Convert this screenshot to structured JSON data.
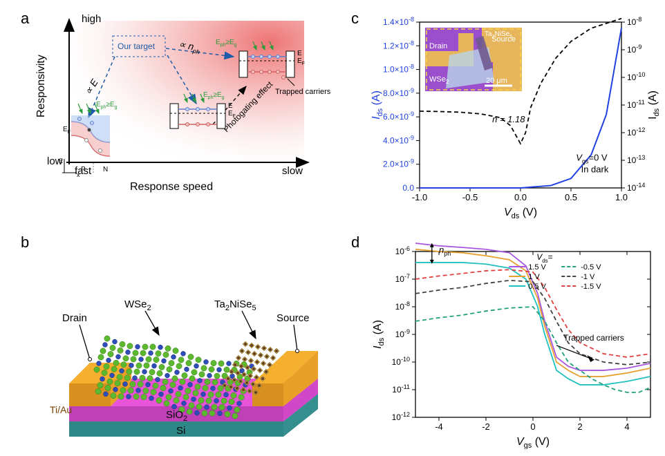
{
  "panel_a": {
    "label": "a",
    "y_axis": "Responsivity",
    "x_axis": "Response speed",
    "y_high": "high",
    "y_low": "low",
    "x_fast": "fast",
    "x_slow": "slow",
    "target_box": "Our target",
    "prop_E": "∝ E",
    "prop_nph": "∝ n",
    "prop_nph_sub": "ph",
    "photogating": "Photogating effect",
    "trapped": "Trapped carriers",
    "Eph_label": "E",
    "Eph_sub": "ph",
    "Eg_label": "≥E",
    "Eg_sub": "g",
    "E_label": "E",
    "EF_label": "E",
    "EF_sub": "F",
    "P_label": "P",
    "N_label": "N",
    "x_small": "x",
    "gradient_color_start": "#fde5e5",
    "gradient_color_end": "#e84545",
    "arrow_color": "#1e5ba8",
    "green_color": "#2b9c3a"
  },
  "panel_b": {
    "label": "b",
    "drain": "Drain",
    "source": "Source",
    "wse2": "WSe",
    "wse2_sub": "2",
    "ta2nise5": "Ta",
    "ta2_sub": "2",
    "nise": "NiSe",
    "nise_sub": "5",
    "tiau": "Ti/Au",
    "sio2": "SiO",
    "sio2_sub": "2",
    "si": "Si",
    "colors": {
      "electrode": "#f5a623",
      "sio2": "#e855d8",
      "si": "#4db8b8",
      "wse2_green": "#5cb82e",
      "wse2_blue": "#2e4db8"
    }
  },
  "panel_c": {
    "label": "c",
    "x_axis": "V",
    "x_axis_sub": "ds",
    "x_axis_unit": " (V)",
    "y_axis_left": "I",
    "y_axis_left_sub": "ds",
    "y_axis_left_unit": " (A)",
    "y_axis_right": "I",
    "y_axis_right_sub": "ds",
    "y_axis_right_unit": " (A)",
    "n_label": "n = 1.18",
    "vgs_label": "V",
    "vgs_sub": "gs",
    "vgs_text": "=0 V",
    "dark_label": "In dark",
    "inset_drain": "Drain",
    "inset_source": "Source",
    "inset_wse2": "WSe",
    "inset_wse2_sub": "2",
    "inset_ta": "Ta",
    "inset_ta_sub": "2",
    "inset_nise": "NiSe",
    "inset_nise_sub": "5",
    "scale_bar": "20 μm",
    "x_ticks": [
      "-1.0",
      "-0.5",
      "0.0",
      "0.5",
      "1.0"
    ],
    "y_left_ticks": [
      "0.0",
      "2.0×10",
      "4.0×10",
      "6.0×10",
      "8.0×10",
      "1.0×10",
      "1.2×10",
      "1.4×10"
    ],
    "y_left_exp": [
      "-9",
      "-9",
      "-9",
      "-9",
      "-8",
      "-8",
      "-8"
    ],
    "y_right_ticks": [
      "10",
      "10",
      "10",
      "10",
      "10",
      "10",
      "10"
    ],
    "y_right_exp": [
      "-14",
      "-13",
      "-12",
      "-11",
      "-10",
      "-9",
      "-8"
    ],
    "blue_color": "#2040e0",
    "inset_bg": "#9b4fcc",
    "inset_electrode": "#f5c848",
    "inset_flake": "#b8d4e8",
    "linear_data": [
      [
        -1.0,
        0.0
      ],
      [
        -0.5,
        0.0
      ],
      [
        0.0,
        0.0
      ],
      [
        0.3,
        2e-10
      ],
      [
        0.5,
        8e-10
      ],
      [
        0.7,
        2.8e-09
      ],
      [
        0.85,
        6.2e-09
      ],
      [
        1.0,
        1.35e-08
      ]
    ],
    "log_data": [
      [
        -1.0,
        6e-12
      ],
      [
        -0.8,
        5.8e-12
      ],
      [
        -0.6,
        5.5e-12
      ],
      [
        -0.4,
        4.8e-12
      ],
      [
        -0.2,
        3.5e-12
      ],
      [
        -0.1,
        1.8e-12
      ],
      [
        0.0,
        4e-13
      ],
      [
        0.05,
        1e-12
      ],
      [
        0.1,
        8e-12
      ],
      [
        0.2,
        6e-11
      ],
      [
        0.35,
        5e-10
      ],
      [
        0.5,
        2e-09
      ],
      [
        0.7,
        6e-09
      ],
      [
        1.0,
        1.35e-08
      ]
    ]
  },
  "panel_d": {
    "label": "d",
    "x_axis": "V",
    "x_axis_sub": "gs",
    "x_axis_unit": " (V)",
    "y_axis": "I",
    "y_axis_sub": "ds",
    "y_axis_unit": " (A)",
    "nph_label": "n",
    "nph_sub": "ph",
    "trapped": "Trapped carriers",
    "vds_label": "V",
    "vds_sub": "ds",
    "vds_eq": "=",
    "legend": [
      "1.5 V",
      "1 V",
      "0.5 V",
      "-0.5 V",
      "-1 V",
      "-1.5 V"
    ],
    "legend_colors": [
      "#a855e0",
      "#e8a030",
      "#20c0c0",
      "#20a080",
      "#404040",
      "#e04040"
    ],
    "legend_dash": [
      false,
      false,
      false,
      true,
      true,
      true
    ],
    "x_ticks": [
      "-4",
      "-2",
      "0",
      "2",
      "4"
    ],
    "y_ticks": [
      "10",
      "10",
      "10",
      "10",
      "10",
      "10",
      "10"
    ],
    "y_exp": [
      "-12",
      "-11",
      "-10",
      "-9",
      "-8",
      "-7",
      "-6"
    ],
    "series": {
      "1.5V": [
        [
          -5,
          2e-06
        ],
        [
          -4,
          1.6e-06
        ],
        [
          -3,
          1.4e-06
        ],
        [
          -2,
          1.2e-06
        ],
        [
          -1,
          9e-07
        ],
        [
          -0.3,
          3e-07
        ],
        [
          0.2,
          3e-08
        ],
        [
          0.5,
          3e-09
        ],
        [
          1,
          1.5e-10
        ],
        [
          1.5,
          7e-11
        ],
        [
          2,
          5e-11
        ],
        [
          3,
          5e-11
        ],
        [
          4,
          6e-11
        ],
        [
          5,
          9e-11
        ]
      ],
      "1V": [
        [
          -5,
          1.2e-06
        ],
        [
          -4,
          1e-06
        ],
        [
          -3,
          9e-07
        ],
        [
          -2,
          7e-07
        ],
        [
          -1,
          5e-07
        ],
        [
          -0.3,
          2e-07
        ],
        [
          0.2,
          2e-08
        ],
        [
          0.5,
          2e-09
        ],
        [
          1,
          1e-10
        ],
        [
          1.5,
          5e-11
        ],
        [
          2,
          3e-11
        ],
        [
          3,
          3e-11
        ],
        [
          4,
          4e-11
        ],
        [
          5,
          6e-11
        ]
      ],
      "0.5V": [
        [
          -5,
          4e-07
        ],
        [
          -4,
          4e-07
        ],
        [
          -3,
          4e-07
        ],
        [
          -2,
          3.5e-07
        ],
        [
          -1,
          2.5e-07
        ],
        [
          -0.3,
          1e-07
        ],
        [
          0.2,
          1e-08
        ],
        [
          0.5,
          1e-09
        ],
        [
          1,
          5e-11
        ],
        [
          1.5,
          2.5e-11
        ],
        [
          2,
          1.5e-11
        ],
        [
          3,
          1.5e-11
        ],
        [
          4,
          2e-11
        ],
        [
          5,
          3e-11
        ]
      ],
      "-0.5V": [
        [
          -5,
          3e-09
        ],
        [
          -4,
          4e-09
        ],
        [
          -3,
          5e-09
        ],
        [
          -2,
          7e-09
        ],
        [
          -1,
          9e-09
        ],
        [
          0,
          1e-08
        ],
        [
          0.5,
          3e-09
        ],
        [
          1,
          5e-10
        ],
        [
          1.5,
          1e-10
        ],
        [
          2,
          5e-11
        ],
        [
          2.5,
          2.5e-11
        ],
        [
          3,
          1.5e-11
        ],
        [
          3.5,
          1e-11
        ],
        [
          4,
          8e-12
        ],
        [
          4.5,
          8e-12
        ],
        [
          5,
          1.2e-11
        ]
      ],
      "-1V": [
        [
          -5,
          3e-08
        ],
        [
          -4,
          4e-08
        ],
        [
          -3,
          5e-08
        ],
        [
          -2,
          7e-08
        ],
        [
          -1,
          9e-08
        ],
        [
          0,
          8e-08
        ],
        [
          0.5,
          2e-08
        ],
        [
          1,
          3e-09
        ],
        [
          1.5,
          5e-10
        ],
        [
          2,
          2e-10
        ],
        [
          3,
          1e-10
        ],
        [
          4,
          8e-11
        ],
        [
          5,
          1e-10
        ]
      ],
      "-1.5V": [
        [
          -5,
          1e-07
        ],
        [
          -4,
          1.3e-07
        ],
        [
          -3,
          1.6e-07
        ],
        [
          -2,
          2e-07
        ],
        [
          -1,
          2.2e-07
        ],
        [
          0,
          1.8e-07
        ],
        [
          0.5,
          5e-08
        ],
        [
          1,
          8e-09
        ],
        [
          1.5,
          1.5e-09
        ],
        [
          2,
          5e-10
        ],
        [
          3,
          2e-10
        ],
        [
          4,
          1.5e-10
        ],
        [
          5,
          2e-10
        ]
      ]
    }
  }
}
